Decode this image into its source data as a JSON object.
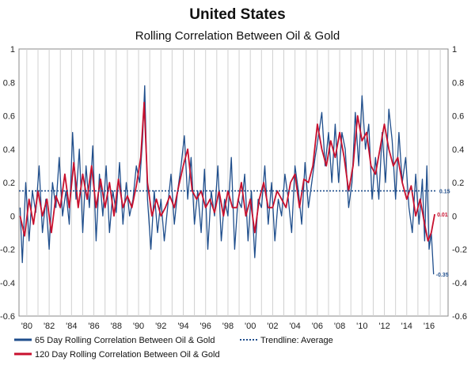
{
  "chart_data": {
    "type": "line",
    "title": "United States",
    "subtitle": "Rolling Correlation Between Oil & Gold",
    "xlabel": "",
    "ylabel": "",
    "x_ticks": [
      "'80",
      "'82",
      "'84",
      "'86",
      "'88",
      "'90",
      "'92",
      "'94",
      "'96",
      "'98",
      "'00",
      "'02",
      "'04",
      "'06",
      "'08",
      "'10",
      "'12",
      "'14",
      "'16"
    ],
    "xlim": [
      1979.3,
      2017.7
    ],
    "y_ticks": [
      "-0.6",
      "-0.4",
      "-0.2",
      "0",
      "0.2",
      "0.4",
      "0.6",
      "0.8",
      "1"
    ],
    "ylim": [
      -0.6,
      1.0
    ],
    "grid": "vertical",
    "legend_position": "bottom",
    "series": [
      {
        "name": "65 Day Rolling Correlation Between Oil & Gold",
        "color": "#1f4e8c",
        "end_label": "-0.35",
        "x": [
          1979.4,
          1979.6,
          1979.9,
          1980.2,
          1980.5,
          1980.8,
          1981.1,
          1981.4,
          1981.7,
          1982.0,
          1982.3,
          1982.6,
          1982.9,
          1983.2,
          1983.5,
          1983.8,
          1984.1,
          1984.4,
          1984.7,
          1985.0,
          1985.3,
          1985.6,
          1985.9,
          1986.2,
          1986.5,
          1986.8,
          1987.1,
          1987.4,
          1987.7,
          1988.0,
          1988.3,
          1988.6,
          1988.9,
          1989.2,
          1989.5,
          1989.8,
          1990.1,
          1990.35,
          1990.55,
          1990.8,
          1991.1,
          1991.4,
          1991.7,
          1992.0,
          1992.3,
          1992.6,
          1992.9,
          1993.2,
          1993.5,
          1993.8,
          1994.1,
          1994.4,
          1994.7,
          1995.0,
          1995.3,
          1995.6,
          1995.9,
          1996.2,
          1996.5,
          1996.8,
          1997.1,
          1997.4,
          1997.7,
          1998.0,
          1998.3,
          1998.6,
          1998.9,
          1999.2,
          1999.5,
          1999.8,
          2000.1,
          2000.4,
          2000.7,
          2001.0,
          2001.3,
          2001.6,
          2001.9,
          2002.2,
          2002.5,
          2002.8,
          2003.1,
          2003.4,
          2003.7,
          2004.0,
          2004.3,
          2004.6,
          2004.9,
          2005.2,
          2005.5,
          2005.8,
          2006.1,
          2006.4,
          2006.7,
          2007.0,
          2007.3,
          2007.6,
          2007.9,
          2008.2,
          2008.5,
          2008.8,
          2009.1,
          2009.4,
          2009.7,
          2010.0,
          2010.3,
          2010.6,
          2010.9,
          2011.2,
          2011.5,
          2011.8,
          2012.1,
          2012.4,
          2012.7,
          2013.0,
          2013.3,
          2013.6,
          2013.9,
          2014.2,
          2014.5,
          2014.8,
          2015.1,
          2015.4,
          2015.6,
          2015.8,
          2016.0,
          2016.2,
          2016.4
        ],
        "y": [
          0.05,
          -0.28,
          0.2,
          -0.15,
          0.15,
          0.02,
          0.3,
          -0.1,
          0.1,
          -0.2,
          0.2,
          0.05,
          0.35,
          0.0,
          0.15,
          -0.05,
          0.5,
          0.1,
          0.4,
          -0.1,
          0.3,
          0.05,
          0.42,
          -0.15,
          0.25,
          0.0,
          0.3,
          -0.1,
          0.15,
          0.02,
          0.32,
          -0.05,
          0.2,
          0.0,
          0.1,
          0.3,
          0.2,
          0.45,
          0.78,
          0.1,
          -0.2,
          0.15,
          -0.1,
          0.1,
          -0.15,
          0.05,
          0.25,
          -0.05,
          0.15,
          0.3,
          0.48,
          0.1,
          0.35,
          -0.05,
          0.15,
          -0.1,
          0.28,
          -0.2,
          0.15,
          0.0,
          0.3,
          -0.15,
          0.1,
          0.0,
          0.35,
          -0.2,
          0.1,
          0.05,
          0.25,
          -0.15,
          0.15,
          -0.25,
          0.1,
          0.05,
          0.3,
          -0.05,
          0.2,
          -0.15,
          0.1,
          0.0,
          0.25,
          0.1,
          -0.1,
          0.3,
          0.15,
          -0.05,
          0.32,
          0.05,
          0.2,
          0.35,
          0.48,
          0.62,
          0.3,
          0.5,
          0.2,
          0.55,
          0.2,
          0.5,
          0.4,
          0.05,
          0.2,
          0.62,
          0.3,
          0.72,
          0.4,
          0.55,
          0.1,
          0.35,
          0.1,
          0.5,
          0.2,
          0.64,
          0.45,
          0.1,
          0.5,
          0.2,
          0.35,
          0.05,
          -0.1,
          0.25,
          -0.05,
          0.22,
          -0.15,
          0.3,
          -0.2,
          -0.1,
          -0.35
        ]
      },
      {
        "name": "120 Day Rolling Correlation Between Oil & Gold",
        "color": "#c8102e",
        "end_label": "0.01",
        "x": [
          1979.4,
          1979.8,
          1980.2,
          1980.6,
          1981.0,
          1981.4,
          1981.8,
          1982.2,
          1982.6,
          1983.0,
          1983.4,
          1983.8,
          1984.2,
          1984.6,
          1985.0,
          1985.4,
          1985.8,
          1986.2,
          1986.6,
          1987.0,
          1987.4,
          1987.8,
          1988.2,
          1988.6,
          1989.0,
          1989.4,
          1989.8,
          1990.2,
          1990.5,
          1990.8,
          1991.2,
          1991.6,
          1992.0,
          1992.4,
          1992.8,
          1993.2,
          1993.6,
          1994.0,
          1994.4,
          1994.8,
          1995.2,
          1995.6,
          1996.0,
          1996.4,
          1996.8,
          1997.2,
          1997.6,
          1998.0,
          1998.4,
          1998.8,
          1999.2,
          1999.6,
          2000.0,
          2000.4,
          2000.8,
          2001.2,
          2001.6,
          2002.0,
          2002.4,
          2002.8,
          2003.2,
          2003.6,
          2004.0,
          2004.4,
          2004.8,
          2005.2,
          2005.6,
          2006.0,
          2006.4,
          2006.8,
          2007.2,
          2007.6,
          2008.0,
          2008.4,
          2008.8,
          2009.2,
          2009.6,
          2010.0,
          2010.4,
          2010.8,
          2011.2,
          2011.6,
          2012.0,
          2012.4,
          2012.8,
          2013.2,
          2013.6,
          2014.0,
          2014.4,
          2014.8,
          2015.2,
          2015.6,
          2015.9,
          2016.2,
          2016.5
        ],
        "y": [
          0.0,
          -0.12,
          0.1,
          -0.05,
          0.15,
          0.0,
          0.1,
          -0.1,
          0.12,
          0.05,
          0.25,
          0.05,
          0.32,
          0.05,
          0.25,
          0.1,
          0.3,
          0.05,
          0.22,
          0.05,
          0.2,
          0.0,
          0.22,
          0.05,
          0.12,
          0.05,
          0.18,
          0.35,
          0.68,
          0.2,
          0.0,
          0.1,
          0.0,
          0.05,
          0.12,
          0.05,
          0.18,
          0.3,
          0.4,
          0.15,
          0.1,
          0.15,
          0.05,
          0.1,
          0.02,
          0.15,
          0.0,
          0.15,
          0.05,
          0.05,
          0.2,
          0.0,
          0.1,
          -0.1,
          0.1,
          0.2,
          0.05,
          0.05,
          0.15,
          0.1,
          0.05,
          0.2,
          0.25,
          0.05,
          0.22,
          0.2,
          0.3,
          0.55,
          0.4,
          0.3,
          0.45,
          0.35,
          0.5,
          0.35,
          0.15,
          0.3,
          0.6,
          0.45,
          0.5,
          0.3,
          0.25,
          0.4,
          0.55,
          0.4,
          0.3,
          0.35,
          0.2,
          0.1,
          0.18,
          0.0,
          0.1,
          -0.05,
          -0.15,
          -0.1,
          0.01
        ]
      },
      {
        "name": "Trendline: Average",
        "color": "#1f4e8c",
        "style": "dotted",
        "end_label": "0.15",
        "x": [
          1979.3,
          2016.7
        ],
        "y": [
          0.15,
          0.15
        ]
      }
    ]
  }
}
